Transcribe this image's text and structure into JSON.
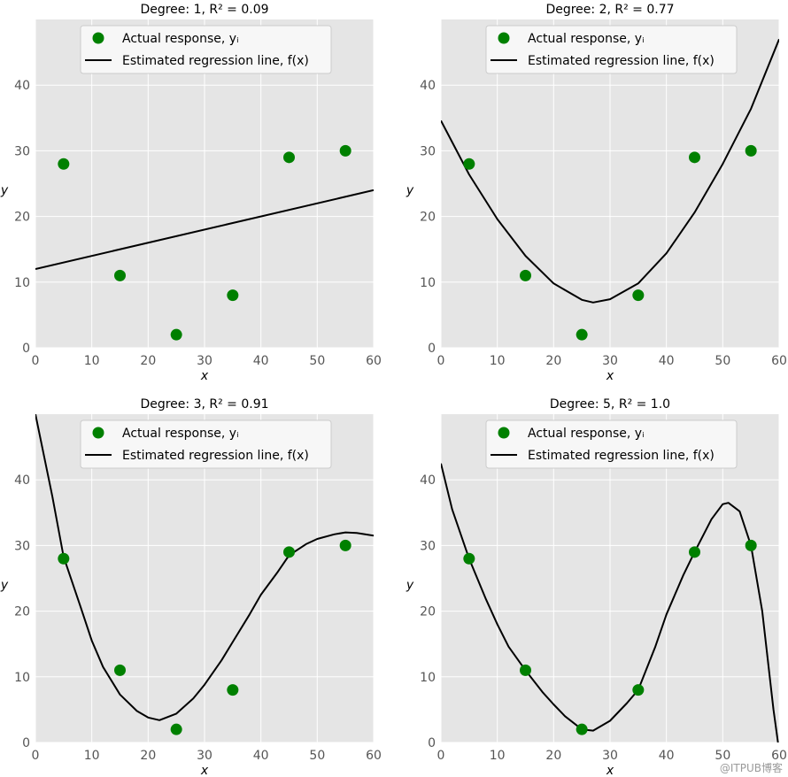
{
  "chart_data": [
    {
      "type": "scatter",
      "title": "Degree: 1, R² = 0.09",
      "xlabel": "x",
      "ylabel": "y",
      "xlim": [
        0,
        60
      ],
      "ylim": [
        0,
        50
      ],
      "xticks": [
        0,
        10,
        20,
        30,
        40,
        50,
        60
      ],
      "yticks": [
        0,
        10,
        20,
        30,
        40
      ],
      "grid": true,
      "legend_position": "upper center",
      "series": [
        {
          "name": "Actual response, yᵢ",
          "kind": "points",
          "color": "#008000",
          "x": [
            5,
            15,
            25,
            35,
            45,
            55
          ],
          "y": [
            28,
            11,
            2,
            8,
            29,
            30
          ]
        },
        {
          "name": "Estimated regression line, f(x)",
          "kind": "line",
          "color": "#000000",
          "x": [
            0,
            60
          ],
          "y": [
            12,
            24
          ]
        }
      ]
    },
    {
      "type": "scatter",
      "title": "Degree: 2, R² = 0.77",
      "xlabel": "x",
      "ylabel": "y",
      "xlim": [
        0,
        60
      ],
      "ylim": [
        0,
        50
      ],
      "xticks": [
        0,
        10,
        20,
        30,
        40,
        50,
        60
      ],
      "yticks": [
        0,
        10,
        20,
        30,
        40
      ],
      "grid": true,
      "legend_position": "upper center",
      "series": [
        {
          "name": "Actual response, yᵢ",
          "kind": "points",
          "color": "#008000",
          "x": [
            5,
            15,
            25,
            35,
            45,
            55
          ],
          "y": [
            28,
            11,
            2,
            8,
            29,
            30
          ]
        },
        {
          "name": "Estimated regression line, f(x)",
          "kind": "line",
          "color": "#000000",
          "x": [
            0,
            5,
            10,
            15,
            20,
            25,
            27,
            30,
            35,
            40,
            45,
            50,
            55,
            60
          ],
          "y": [
            34.6,
            26.4,
            19.6,
            14.0,
            9.8,
            7.3,
            6.9,
            7.4,
            9.8,
            14.4,
            20.6,
            28.0,
            36.4,
            47.0
          ]
        }
      ]
    },
    {
      "type": "scatter",
      "title": "Degree: 3, R² = 0.91",
      "xlabel": "x",
      "ylabel": "y",
      "xlim": [
        0,
        60
      ],
      "ylim": [
        0,
        50
      ],
      "xticks": [
        0,
        10,
        20,
        30,
        40,
        50,
        60
      ],
      "yticks": [
        0,
        10,
        20,
        30,
        40
      ],
      "grid": true,
      "legend_position": "upper center",
      "series": [
        {
          "name": "Actual response, yᵢ",
          "kind": "points",
          "color": "#008000",
          "x": [
            5,
            15,
            25,
            35,
            45,
            55
          ],
          "y": [
            28,
            11,
            2,
            8,
            29,
            30
          ]
        },
        {
          "name": "Estimated regression line, f(x)",
          "kind": "line",
          "color": "#000000",
          "x": [
            0,
            3,
            5,
            8,
            10,
            12,
            15,
            18,
            20,
            22,
            25,
            28,
            30,
            33,
            35,
            38,
            40,
            43,
            45,
            48,
            50,
            53,
            55,
            57,
            60
          ],
          "y": [
            50,
            37.5,
            28.3,
            20.7,
            15.5,
            11.5,
            7.3,
            4.8,
            3.8,
            3.4,
            4.4,
            6.7,
            8.8,
            12.5,
            15.3,
            19.5,
            22.5,
            26.0,
            28.5,
            30.2,
            31.0,
            31.7,
            32.0,
            31.9,
            31.5
          ]
        }
      ]
    },
    {
      "type": "scatter",
      "title": "Degree: 5, R² = 1.0",
      "xlabel": "x",
      "ylabel": "y",
      "xlim": [
        0,
        60
      ],
      "ylim": [
        0,
        50
      ],
      "xticks": [
        0,
        10,
        20,
        30,
        40,
        50,
        60
      ],
      "yticks": [
        0,
        10,
        20,
        30,
        40
      ],
      "grid": true,
      "legend_position": "upper center",
      "series": [
        {
          "name": "Actual response, yᵢ",
          "kind": "points",
          "color": "#008000",
          "x": [
            5,
            15,
            25,
            35,
            45,
            55
          ],
          "y": [
            28,
            11,
            2,
            8,
            29,
            30
          ]
        },
        {
          "name": "Estimated regression line, f(x)",
          "kind": "line",
          "color": "#000000",
          "x": [
            0,
            2,
            5,
            8,
            10,
            12,
            15,
            18,
            20,
            22,
            25,
            27,
            30,
            33,
            35,
            38,
            40,
            43,
            45,
            48,
            50,
            51,
            53,
            55,
            57,
            59,
            59.8
          ],
          "y": [
            42.5,
            35.5,
            28.0,
            21.8,
            18.0,
            14.6,
            11.0,
            7.7,
            5.8,
            4.0,
            2.0,
            1.8,
            3.3,
            6.0,
            8.0,
            14.5,
            19.5,
            25.5,
            29.0,
            34.0,
            36.3,
            36.5,
            35.2,
            30.0,
            20.0,
            5.0,
            0
          ]
        }
      ]
    }
  ],
  "watermark": "@ITPUB博客"
}
